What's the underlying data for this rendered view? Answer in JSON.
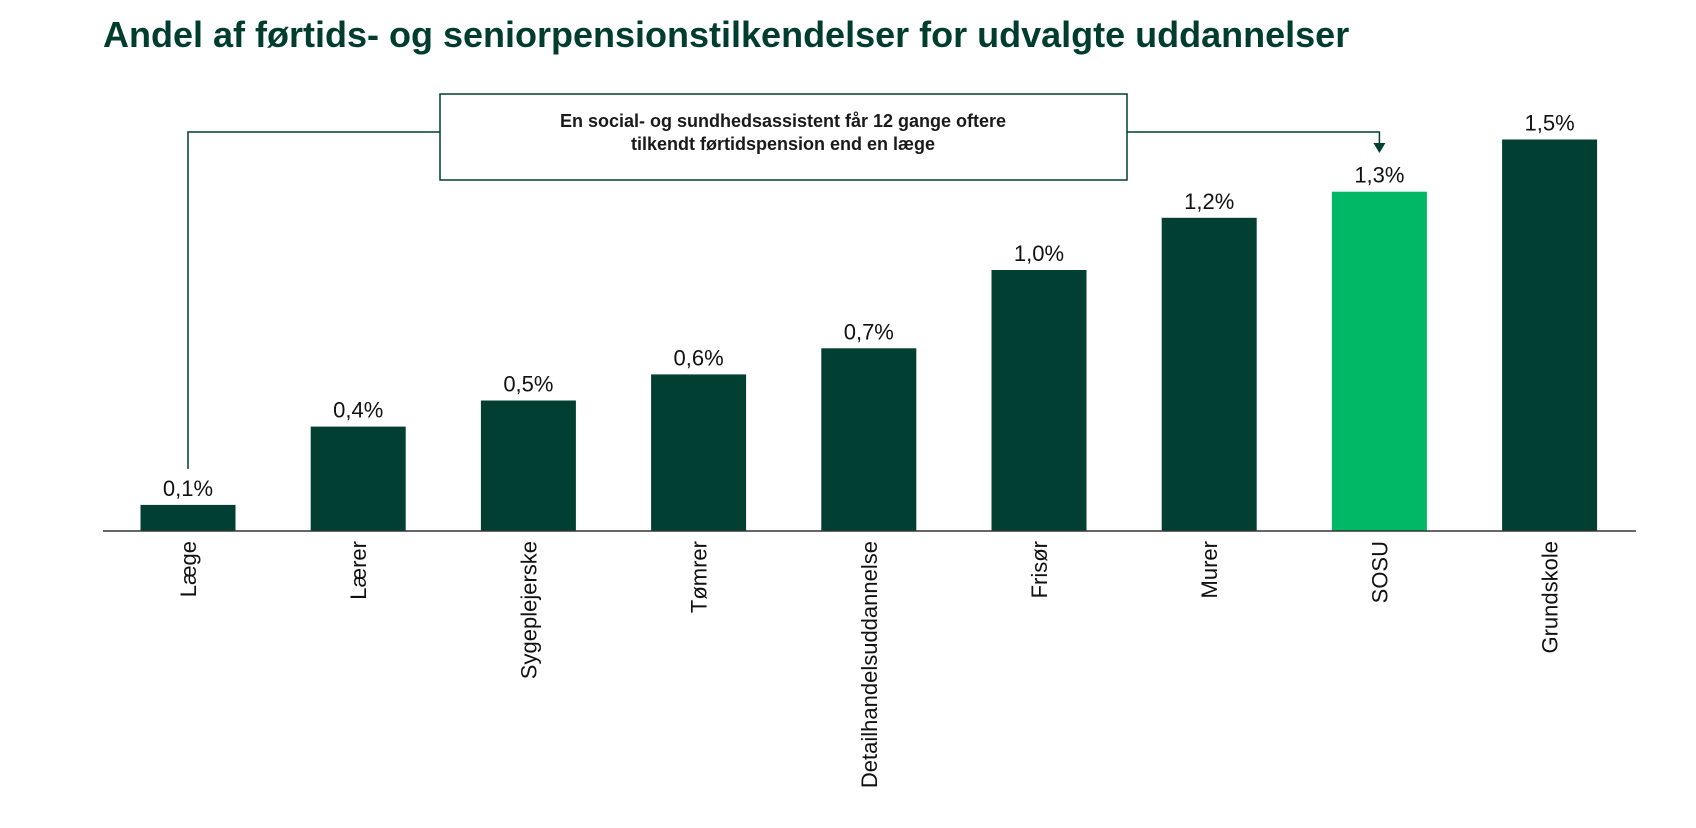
{
  "chart_data": {
    "type": "bar",
    "title": "Andel af førtids- og seniorpensionstilkendelser for udvalgte uddannelser",
    "xlabel": "",
    "ylabel": "",
    "categories": [
      "Læge",
      "Lærer",
      "Sygeplejerske",
      "Tømrer",
      "Detailhandelsuddannelse",
      "Frisør",
      "Murer",
      "SOSU",
      "Grundskole"
    ],
    "values": [
      0.1,
      0.4,
      0.5,
      0.6,
      0.7,
      1.0,
      1.2,
      1.3,
      1.5
    ],
    "value_labels": [
      "0,1%",
      "0,4%",
      "0,5%",
      "0,6%",
      "0,7%",
      "1,0%",
      "1,2%",
      "1,3%",
      "1,5%"
    ],
    "highlight_index": 7,
    "colors": {
      "bar": "#003f31",
      "highlight": "#00b865",
      "axis": "#333333",
      "callout_line": "#003f31"
    },
    "grid": false,
    "legend": "none",
    "annotation": {
      "text_lines": [
        "En social- og sundhedsassistent får 12 gange oftere",
        "tilkendt førtidspension end en læge"
      ],
      "from_category": "Læge",
      "to_category": "SOSU"
    }
  }
}
